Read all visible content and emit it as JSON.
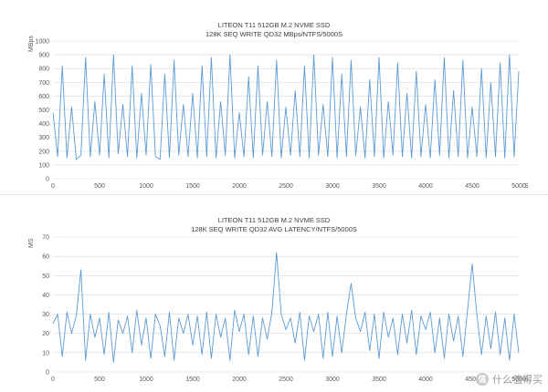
{
  "chart_data": [
    {
      "type": "line",
      "title": "LITEON T11 512GB M.2 NVME SSD",
      "subtitle": "128K SEQ WRITE QD32 MBps/NTFS/5000S",
      "ylabel": "MBps",
      "xlabel": "S",
      "xlim": [
        0,
        5000
      ],
      "ylim": [
        0,
        1000
      ],
      "xticks": [
        0,
        500,
        1000,
        1500,
        2000,
        2500,
        3000,
        3500,
        4000,
        4500,
        5000
      ],
      "yticks": [
        0,
        100,
        200,
        300,
        400,
        500,
        600,
        700,
        800,
        900,
        1000
      ],
      "grid": true,
      "color": "#5b9bd5",
      "series": [
        {
          "values_description": "high-frequency throughput samples every ~50 s",
          "x": [
            0,
            50,
            100,
            150,
            200,
            250,
            300,
            350,
            400,
            450,
            500,
            550,
            600,
            650,
            700,
            750,
            800,
            850,
            900,
            950,
            1000,
            1050,
            1100,
            1150,
            1200,
            1250,
            1300,
            1350,
            1400,
            1450,
            1500,
            1550,
            1600,
            1650,
            1700,
            1750,
            1800,
            1850,
            1900,
            1950,
            2000,
            2050,
            2100,
            2150,
            2200,
            2250,
            2300,
            2350,
            2400,
            2450,
            2500,
            2550,
            2600,
            2650,
            2700,
            2750,
            2800,
            2850,
            2900,
            2950,
            3000,
            3050,
            3100,
            3150,
            3200,
            3250,
            3300,
            3350,
            3400,
            3450,
            3500,
            3550,
            3600,
            3650,
            3700,
            3750,
            3800,
            3850,
            3900,
            3950,
            4000,
            4050,
            4100,
            4150,
            4200,
            4250,
            4300,
            4350,
            4400,
            4450,
            4500,
            4550,
            4600,
            4650,
            4700,
            4750,
            4800,
            4850,
            4900,
            4950,
            5000
          ],
          "y": [
            480,
            160,
            820,
            150,
            520,
            140,
            170,
            880,
            160,
            560,
            170,
            760,
            150,
            900,
            180,
            540,
            160,
            820,
            150,
            620,
            170,
            830,
            160,
            140,
            760,
            150,
            860,
            170,
            540,
            160,
            620,
            150,
            820,
            160,
            880,
            150,
            560,
            170,
            900,
            150,
            480,
            160,
            740,
            150,
            820,
            170,
            560,
            160,
            860,
            150,
            520,
            170,
            640,
            160,
            820,
            150,
            900,
            170,
            540,
            160,
            880,
            150,
            760,
            160,
            860,
            170,
            520,
            150,
            720,
            160,
            880,
            150,
            560,
            170,
            840,
            160,
            620,
            150,
            780,
            160,
            540,
            150,
            720,
            170,
            880,
            150,
            640,
            160,
            860,
            150,
            520,
            160,
            800,
            150,
            700,
            160,
            840,
            150,
            900,
            160,
            780
          ]
        }
      ]
    },
    {
      "type": "line",
      "title": "LITEON T11 512GB M.2 NVME SSD",
      "subtitle": "128K SEQ WRITE QD32 AVG LATENCY/NTFS/5000S",
      "ylabel": "MS",
      "xlabel": "S",
      "xlim": [
        0,
        5000
      ],
      "ylim": [
        0,
        70
      ],
      "xticks": [
        0,
        500,
        1000,
        1500,
        2000,
        2500,
        3000,
        3500,
        4000,
        4500,
        5000
      ],
      "yticks": [
        0,
        10,
        20,
        30,
        40,
        50,
        60,
        70
      ],
      "grid": true,
      "color": "#5b9bd5",
      "series": [
        {
          "x": [
            0,
            50,
            100,
            150,
            200,
            250,
            300,
            350,
            400,
            450,
            500,
            550,
            600,
            650,
            700,
            750,
            800,
            850,
            900,
            950,
            1000,
            1050,
            1100,
            1150,
            1200,
            1250,
            1300,
            1350,
            1400,
            1450,
            1500,
            1550,
            1600,
            1650,
            1700,
            1750,
            1800,
            1850,
            1900,
            1950,
            2000,
            2050,
            2100,
            2150,
            2200,
            2250,
            2300,
            2350,
            2400,
            2450,
            2500,
            2550,
            2600,
            2650,
            2700,
            2750,
            2800,
            2850,
            2900,
            2950,
            3000,
            3050,
            3100,
            3150,
            3200,
            3250,
            3300,
            3350,
            3400,
            3450,
            3500,
            3550,
            3600,
            3650,
            3700,
            3750,
            3800,
            3850,
            3900,
            3950,
            4000,
            4050,
            4100,
            4150,
            4200,
            4250,
            4300,
            4350,
            4400,
            4450,
            4500,
            4550,
            4600,
            4650,
            4700,
            4750,
            4800,
            4850,
            4900,
            4950,
            5000
          ],
          "y": [
            25,
            30,
            8,
            31,
            20,
            29,
            53,
            6,
            30,
            18,
            28,
            9,
            31,
            5,
            27,
            20,
            29,
            10,
            32,
            14,
            28,
            7,
            30,
            24,
            8,
            31,
            6,
            28,
            20,
            30,
            14,
            29,
            9,
            31,
            7,
            30,
            18,
            28,
            6,
            32,
            21,
            30,
            9,
            29,
            8,
            28,
            17,
            31,
            62,
            30,
            22,
            28,
            15,
            31,
            6,
            29,
            21,
            30,
            7,
            31,
            8,
            29,
            10,
            30,
            46,
            28,
            21,
            31,
            11,
            30,
            7,
            31,
            18,
            28,
            9,
            30,
            15,
            32,
            9,
            29,
            22,
            31,
            10,
            28,
            7,
            30,
            16,
            29,
            8,
            32,
            56,
            30,
            9,
            29,
            12,
            31,
            9,
            28,
            6,
            30,
            10
          ]
        }
      ]
    }
  ],
  "watermark": {
    "logo_char": "值",
    "text": "什么值得买"
  }
}
